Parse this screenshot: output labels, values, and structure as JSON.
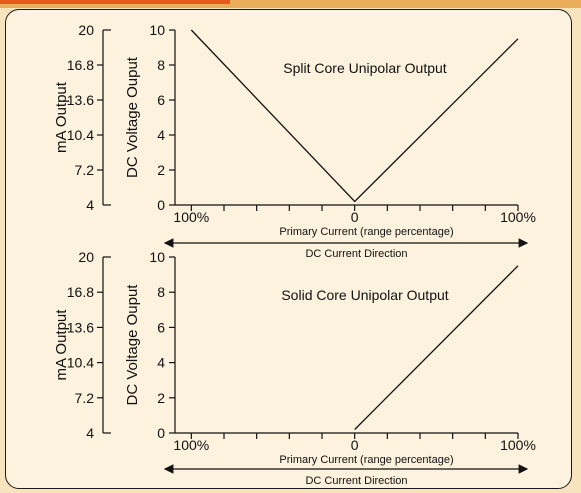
{
  "figure": {
    "colors": {
      "panel_bg": "#fdf2dd",
      "outer_bg": "#f7e3bd",
      "accent_band": "#e65a1e",
      "line": "#111111"
    }
  },
  "chart_data": [
    {
      "type": "line",
      "title": "Split Core Unipolar Output",
      "ylabel": "DC Voltage Ouput",
      "ylabel_secondary": "mA Output",
      "xlabel": "Primary Current (range percentage)",
      "direction_label": "DC Current Direction",
      "x_tick_labels": [
        "100%",
        "0",
        "100%"
      ],
      "x": [
        -100,
        0,
        100
      ],
      "xlim": [
        -110,
        100
      ],
      "ylim": [
        0,
        10
      ],
      "y_ticks": [
        0,
        2,
        4,
        6,
        8,
        10
      ],
      "y_tick_labels": [
        "0",
        "2",
        "4",
        "6",
        "8",
        "10"
      ],
      "ma_ticks": [
        4,
        7.2,
        10.4,
        13.6,
        16.8,
        20
      ],
      "ma_tick_labels": [
        "4",
        "7.2",
        "10.4",
        "13.6",
        "16.8",
        "20"
      ],
      "series": [
        {
          "values": [
            10,
            0.2,
            9.5
          ]
        }
      ]
    },
    {
      "type": "line",
      "title": "Solid Core Unipolar Output",
      "ylabel": "DC Voltage Ouput",
      "ylabel_secondary": "mA Output",
      "xlabel": "Primary Current (range percentage)",
      "direction_label": "DC Current Direction",
      "x_tick_labels": [
        "100%",
        "0",
        "100%"
      ],
      "x": [
        0,
        100
      ],
      "xlim": [
        -110,
        100
      ],
      "ylim": [
        0,
        10
      ],
      "y_ticks": [
        0,
        2,
        4,
        6,
        8,
        10
      ],
      "y_tick_labels": [
        "0",
        "2",
        "4",
        "6",
        "8",
        "10"
      ],
      "ma_ticks": [
        4,
        7.2,
        10.4,
        13.6,
        16.8,
        20
      ],
      "ma_tick_labels": [
        "4",
        "7.2",
        "10.4",
        "13.6",
        "16.8",
        "20"
      ],
      "series": [
        {
          "values": [
            0.2,
            9.5
          ]
        }
      ]
    }
  ]
}
